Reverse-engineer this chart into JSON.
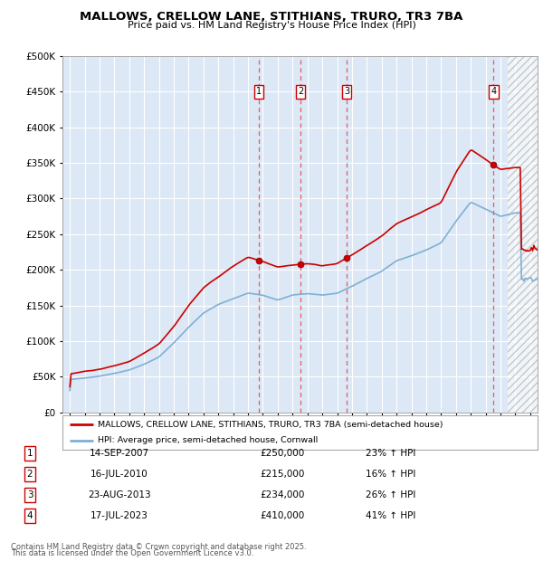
{
  "title": "MALLOWS, CRELLOW LANE, STITHIANS, TRURO, TR3 7BA",
  "subtitle": "Price paid vs. HM Land Registry's House Price Index (HPI)",
  "property_label": "MALLOWS, CRELLOW LANE, STITHIANS, TRURO, TR3 7BA (semi-detached house)",
  "hpi_label": "HPI: Average price, semi-detached house, Cornwall",
  "footer1": "Contains HM Land Registry data © Crown copyright and database right 2025.",
  "footer2": "This data is licensed under the Open Government Licence v3.0.",
  "sale_dates": [
    "14-SEP-2007",
    "16-JUL-2010",
    "23-AUG-2013",
    "17-JUL-2023"
  ],
  "sale_prices": [
    250000,
    215000,
    234000,
    410000
  ],
  "sale_hpi_pct": [
    "23% ↑ HPI",
    "16% ↑ HPI",
    "26% ↑ HPI",
    "41% ↑ HPI"
  ],
  "sale_years": [
    2007.71,
    2010.54,
    2013.64,
    2023.54
  ],
  "ylim": [
    0,
    500000
  ],
  "xlim_start": 1994.5,
  "xlim_end": 2026.5,
  "plot_bg": "#dce8f5",
  "line_color_property": "#cc0000",
  "line_color_hpi": "#7fb0d4",
  "grid_color": "#ffffff",
  "dashed_line_color": "#e06060"
}
